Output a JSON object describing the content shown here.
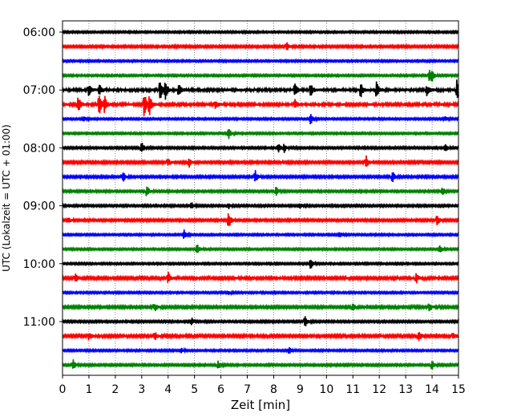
{
  "chart_data": {
    "type": "line",
    "title": "",
    "xlabel": "Zeit  [min]",
    "ylabel": "UTC (Lokalzeit = UTC + 01:00)",
    "xlim": [
      0,
      15
    ],
    "x_ticks": [
      "0",
      "1",
      "2",
      "3",
      "4",
      "5",
      "6",
      "7",
      "8",
      "9",
      "10",
      "11",
      "12",
      "13",
      "14",
      "15"
    ],
    "y_ticks": [
      {
        "label": "06:00",
        "trace": 0
      },
      {
        "label": "07:00",
        "trace": 4
      },
      {
        "label": "08:00",
        "trace": 8
      },
      {
        "label": "09:00",
        "trace": 12
      },
      {
        "label": "10:00",
        "trace": 16
      },
      {
        "label": "11:00",
        "trace": 20
      }
    ],
    "grid": "vertical dotted lines at each minute",
    "trace_interval_min": 15,
    "trace_colors": [
      "#000000",
      "#ff0000",
      "#0000ff",
      "#008000"
    ],
    "traces": [
      {
        "start": "06:00",
        "noise": 1.0,
        "events": []
      },
      {
        "start": "06:15",
        "noise": 1.2,
        "events": [
          [
            8.5,
            5
          ]
        ]
      },
      {
        "start": "06:30",
        "noise": 1.0,
        "events": []
      },
      {
        "start": "06:45",
        "noise": 1.0,
        "events": [
          [
            13.9,
            7
          ],
          [
            14.0,
            6
          ]
        ]
      },
      {
        "start": "07:00",
        "noise": 1.6,
        "events": [
          [
            1.0,
            8
          ],
          [
            1.4,
            7
          ],
          [
            3.7,
            12
          ],
          [
            3.9,
            10
          ],
          [
            4.4,
            9
          ],
          [
            8.8,
            8
          ],
          [
            9.4,
            8
          ],
          [
            11.3,
            9
          ],
          [
            11.9,
            10
          ],
          [
            13.8,
            6
          ],
          [
            14.95,
            16
          ]
        ]
      },
      {
        "start": "07:15",
        "noise": 1.5,
        "events": [
          [
            0.6,
            10
          ],
          [
            1.4,
            14
          ],
          [
            1.6,
            10
          ],
          [
            3.1,
            16
          ],
          [
            3.3,
            11
          ],
          [
            5.8,
            5
          ],
          [
            8.8,
            6
          ]
        ]
      },
      {
        "start": "07:30",
        "noise": 1.0,
        "events": [
          [
            0.8,
            4
          ],
          [
            9.4,
            7
          ],
          [
            14.5,
            3
          ]
        ]
      },
      {
        "start": "07:45",
        "noise": 1.0,
        "events": [
          [
            6.3,
            7
          ]
        ]
      },
      {
        "start": "08:00",
        "noise": 1.1,
        "events": [
          [
            3.0,
            7
          ],
          [
            8.2,
            6
          ],
          [
            8.4,
            5
          ],
          [
            14.5,
            6
          ]
        ]
      },
      {
        "start": "08:15",
        "noise": 1.3,
        "events": [
          [
            4.0,
            5
          ],
          [
            4.8,
            6
          ],
          [
            11.5,
            8
          ]
        ]
      },
      {
        "start": "08:30",
        "noise": 1.2,
        "events": [
          [
            2.3,
            6
          ],
          [
            7.3,
            8
          ],
          [
            12.5,
            7
          ]
        ]
      },
      {
        "start": "08:45",
        "noise": 1.1,
        "events": [
          [
            3.2,
            8
          ],
          [
            8.1,
            6
          ],
          [
            14.4,
            5
          ]
        ]
      },
      {
        "start": "09:00",
        "noise": 1.1,
        "events": [
          [
            4.9,
            4
          ],
          [
            6.3,
            3
          ],
          [
            9.0,
            3
          ]
        ]
      },
      {
        "start": "09:15",
        "noise": 1.2,
        "events": [
          [
            0.2,
            4
          ],
          [
            6.3,
            10
          ],
          [
            14.2,
            7
          ]
        ]
      },
      {
        "start": "09:30",
        "noise": 1.0,
        "events": [
          [
            4.6,
            7
          ],
          [
            10.5,
            4
          ]
        ]
      },
      {
        "start": "09:45",
        "noise": 1.0,
        "events": [
          [
            5.1,
            7
          ],
          [
            14.3,
            6
          ]
        ]
      },
      {
        "start": "10:00",
        "noise": 1.0,
        "events": [
          [
            9.4,
            8
          ]
        ]
      },
      {
        "start": "10:15",
        "noise": 1.4,
        "events": [
          [
            0.5,
            5
          ],
          [
            4.0,
            8
          ],
          [
            13.4,
            6
          ]
        ]
      },
      {
        "start": "10:30",
        "noise": 1.0,
        "events": [
          [
            6.3,
            2
          ]
        ]
      },
      {
        "start": "10:45",
        "noise": 1.3,
        "events": [
          [
            3.5,
            5
          ],
          [
            11.0,
            4
          ],
          [
            13.9,
            5
          ]
        ]
      },
      {
        "start": "11:00",
        "noise": 1.1,
        "events": [
          [
            4.9,
            4
          ],
          [
            9.2,
            7
          ]
        ]
      },
      {
        "start": "11:15",
        "noise": 1.4,
        "events": [
          [
            1.0,
            5
          ],
          [
            3.5,
            5
          ],
          [
            13.5,
            7
          ],
          [
            14.8,
            4
          ]
        ]
      },
      {
        "start": "11:30",
        "noise": 1.0,
        "events": [
          [
            4.5,
            3
          ],
          [
            8.6,
            5
          ]
        ]
      },
      {
        "start": "11:45",
        "noise": 1.1,
        "events": [
          [
            0.4,
            7
          ],
          [
            5.9,
            5
          ],
          [
            14.0,
            6
          ]
        ]
      }
    ]
  }
}
